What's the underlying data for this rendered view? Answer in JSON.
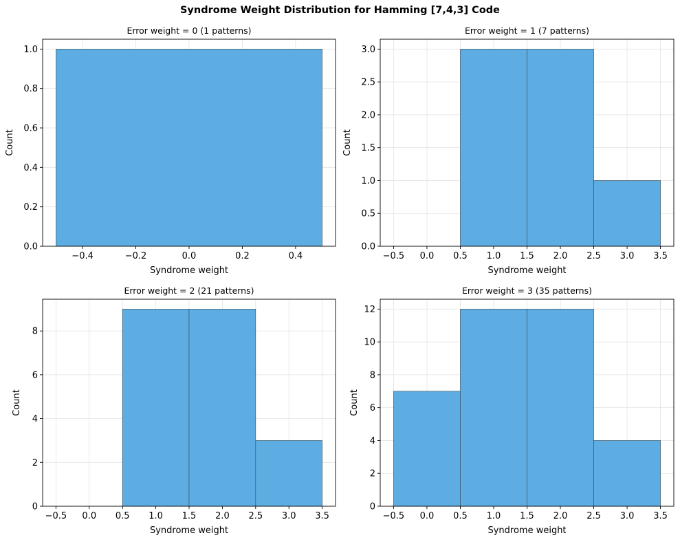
{
  "figure": {
    "title": "Syndrome Weight Distribution for Hamming [7,4,3] Code"
  },
  "colors": {
    "bar_fill": "#5dade2",
    "bar_edge": "#3c4a55",
    "grid": "#e3e3e3",
    "axis": "#000000"
  },
  "chart_data": [
    {
      "type": "bar",
      "title": "Error weight = 0 (1 patterns)",
      "xlabel": "Syndrome weight",
      "ylabel": "Count",
      "bins": [
        [
          -0.5,
          0.5
        ]
      ],
      "values": [
        1
      ],
      "xlim": [
        -0.55,
        0.55
      ],
      "ylim": [
        0,
        1.05
      ],
      "xticks": [
        -0.4,
        -0.2,
        0.0,
        0.2,
        0.4
      ],
      "xtick_labels": [
        "−0.4",
        "−0.2",
        "0.0",
        "0.2",
        "0.4"
      ],
      "yticks": [
        0,
        0.2,
        0.4,
        0.6,
        0.8,
        1.0
      ],
      "ytick_labels": [
        "0.0",
        "0.2",
        "0.4",
        "0.6",
        "0.8",
        "1.0"
      ],
      "grid": true
    },
    {
      "type": "bar",
      "title": "Error weight = 1 (7 patterns)",
      "xlabel": "Syndrome weight",
      "ylabel": "Count",
      "bins": [
        [
          0.5,
          1.5
        ],
        [
          1.5,
          2.5
        ],
        [
          2.5,
          3.5
        ]
      ],
      "values": [
        3,
        3,
        1
      ],
      "xlim": [
        -0.7,
        3.7
      ],
      "ylim": [
        0,
        3.15
      ],
      "xticks": [
        -0.5,
        0.0,
        0.5,
        1.0,
        1.5,
        2.0,
        2.5,
        3.0,
        3.5
      ],
      "xtick_labels": [
        "−0.5",
        "0.0",
        "0.5",
        "1.0",
        "1.5",
        "2.0",
        "2.5",
        "3.0",
        "3.5"
      ],
      "yticks": [
        0,
        0.5,
        1.0,
        1.5,
        2.0,
        2.5,
        3.0
      ],
      "ytick_labels": [
        "0.0",
        "0.5",
        "1.0",
        "1.5",
        "2.0",
        "2.5",
        "3.0"
      ],
      "grid": true
    },
    {
      "type": "bar",
      "title": "Error weight = 2 (21 patterns)",
      "xlabel": "Syndrome weight",
      "ylabel": "Count",
      "bins": [
        [
          0.5,
          1.5
        ],
        [
          1.5,
          2.5
        ],
        [
          2.5,
          3.5
        ]
      ],
      "values": [
        9,
        9,
        3
      ],
      "xlim": [
        -0.7,
        3.7
      ],
      "ylim": [
        0,
        9.45
      ],
      "xticks": [
        -0.5,
        0.0,
        0.5,
        1.0,
        1.5,
        2.0,
        2.5,
        3.0,
        3.5
      ],
      "xtick_labels": [
        "−0.5",
        "0.0",
        "0.5",
        "1.0",
        "1.5",
        "2.0",
        "2.5",
        "3.0",
        "3.5"
      ],
      "yticks": [
        0,
        2,
        4,
        6,
        8
      ],
      "ytick_labels": [
        "0",
        "2",
        "4",
        "6",
        "8"
      ],
      "grid": true
    },
    {
      "type": "bar",
      "title": "Error weight = 3 (35 patterns)",
      "xlabel": "Syndrome weight",
      "ylabel": "Count",
      "bins": [
        [
          -0.5,
          0.5
        ],
        [
          0.5,
          1.5
        ],
        [
          1.5,
          2.5
        ],
        [
          2.5,
          3.5
        ]
      ],
      "values": [
        7,
        12,
        12,
        4
      ],
      "xlim": [
        -0.7,
        3.7
      ],
      "ylim": [
        0,
        12.6
      ],
      "xticks": [
        -0.5,
        0.0,
        0.5,
        1.0,
        1.5,
        2.0,
        2.5,
        3.0,
        3.5
      ],
      "xtick_labels": [
        "−0.5",
        "0.0",
        "0.5",
        "1.0",
        "1.5",
        "2.0",
        "2.5",
        "3.0",
        "3.5"
      ],
      "yticks": [
        0,
        2,
        4,
        6,
        8,
        10,
        12
      ],
      "ytick_labels": [
        "0",
        "2",
        "4",
        "6",
        "8",
        "10",
        "12"
      ],
      "grid": true
    }
  ]
}
